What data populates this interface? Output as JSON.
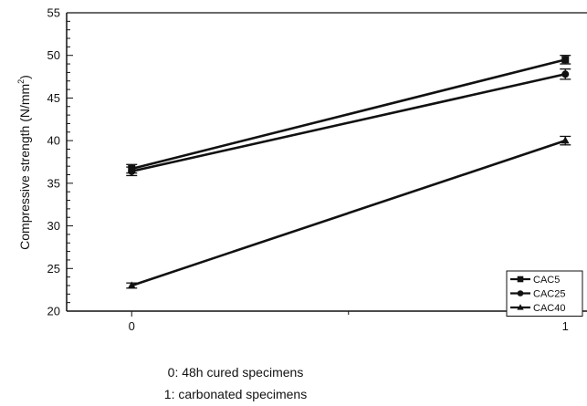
{
  "chart_data": {
    "type": "line",
    "x": [
      0,
      1
    ],
    "x_ticks": [
      "0",
      "1"
    ],
    "xlim": [
      -0.15,
      1.05
    ],
    "xlabel_lines": [
      "0: 48h cured specimens",
      "1: carbonated specimens"
    ],
    "ylabel_main": "Compressive strength (N/mm",
    "ylabel_sup": "2",
    "ylabel_tail": ")",
    "ylim": [
      20,
      55
    ],
    "y_ticks": [
      "20",
      "25",
      "30",
      "35",
      "40",
      "45",
      "50",
      "55"
    ],
    "legend_position": "bottom-right",
    "grid": false,
    "series": [
      {
        "name": "CAC5",
        "marker": "square",
        "values": [
          36.7,
          49.5
        ],
        "errors": [
          0.5,
          0.5
        ]
      },
      {
        "name": "CAC25",
        "marker": "circle",
        "values": [
          36.4,
          47.8
        ],
        "errors": [
          0.5,
          0.6
        ]
      },
      {
        "name": "CAC40",
        "marker": "triangle",
        "values": [
          23.0,
          40.0
        ],
        "errors": [
          0.3,
          0.5
        ]
      }
    ],
    "colors": {
      "line": "#111111",
      "axis": "#111111",
      "background": "#ffffff"
    }
  }
}
